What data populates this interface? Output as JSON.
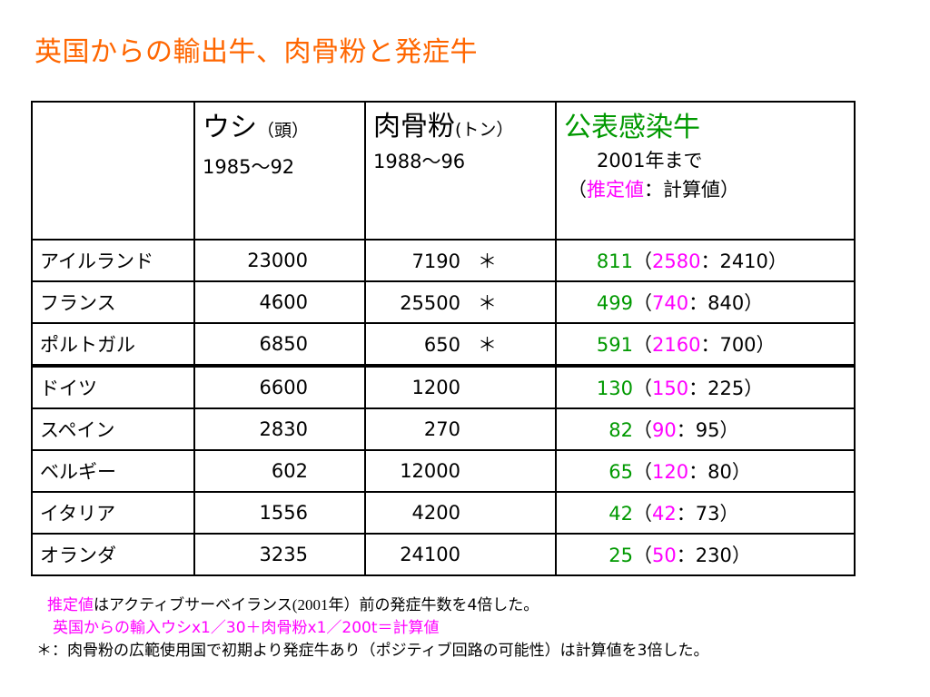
{
  "title": "英国からの輸出牛、肉骨粉と発症牛",
  "header": {
    "col1": "",
    "col2_main": "ウシ",
    "col2_unit": "（頭）",
    "col2_period": "1985～92",
    "col3_main": "肉骨粉",
    "col3_unit": "(トン）",
    "col3_period": "1988～96",
    "col4_main": "公表感染牛",
    "col4_year": "2001年まで",
    "col4_paren_open": "（",
    "col4_estimate": "推定値",
    "col4_calc": "：計算値）"
  },
  "rows": [
    {
      "country": "アイルランド",
      "cattle": "23000",
      "mbm": "7190",
      "mark": "＊",
      "official": "811",
      "estimate": "2580",
      "calc": "2410"
    },
    {
      "country": "フランス",
      "cattle": "4600",
      "mbm": "25500",
      "mark": "＊",
      "official": "499",
      "estimate": "740",
      "calc": "840"
    },
    {
      "country": "ポルトガル",
      "cattle": "6850",
      "mbm": "650",
      "mark": "＊",
      "official": "591",
      "estimate": "2160",
      "calc": "700"
    },
    {
      "country": "ドイツ",
      "cattle": "6600",
      "mbm": "1200",
      "mark": "",
      "official": "130",
      "estimate": "150",
      "calc": "225"
    },
    {
      "country": "スペイン",
      "cattle": "2830",
      "mbm": "270",
      "mark": "",
      "official": "82",
      "estimate": "90",
      "calc": "95"
    },
    {
      "country": "ベルギー",
      "cattle": "602",
      "mbm": "12000",
      "mark": "",
      "official": "65",
      "estimate": "120",
      "calc": "80"
    },
    {
      "country": "イタリア",
      "cattle": "1556",
      "mbm": "4200",
      "mark": "",
      "official": "42",
      "estimate": "42",
      "calc": "73"
    },
    {
      "country": "オランダ",
      "cattle": "3235",
      "mbm": "24100",
      "mark": "",
      "official": "25",
      "estimate": "50",
      "calc": "230"
    }
  ],
  "notes": {
    "line1_pink": "推定値",
    "line1_a": "はアクティブサーベイランス",
    "line1_year": "(2001",
    "line1_b": "年）前の発症牛数を4倍した。",
    "line2": "英国からの輸入ウシx1／30＋肉骨粉x1／200t＝計算値",
    "line3": "＊：肉骨粉の広範使用国で初期より発症牛あり（ポジティブ回路の可能性）は計算値を3倍した。"
  },
  "colors": {
    "title": "#ff6600",
    "official": "#009900",
    "estimate": "#ff00ff",
    "line": "#000000"
  }
}
